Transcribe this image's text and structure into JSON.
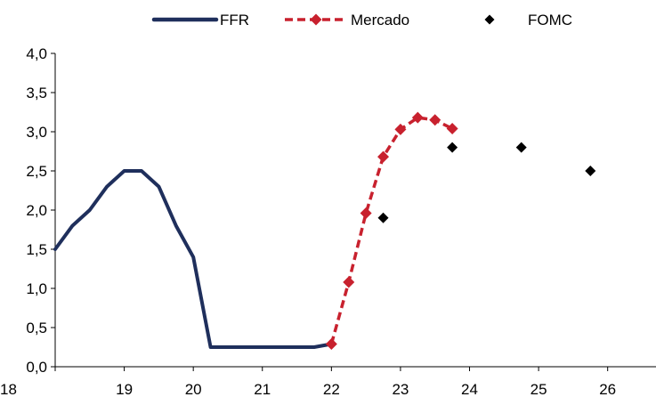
{
  "chart_data": {
    "type": "line",
    "title": "",
    "xlabel": "",
    "ylabel": "",
    "xlim": [
      18,
      26.7
    ],
    "ylim": [
      0,
      4.0
    ],
    "x_ticks": [
      18,
      19,
      20,
      21,
      22,
      23,
      24,
      25,
      26
    ],
    "x_tick_labels": [
      "18",
      "19",
      "20",
      "21",
      "22",
      "23",
      "24",
      "25",
      "26"
    ],
    "y_ticks": [
      0,
      0.5,
      1.0,
      1.5,
      2.0,
      2.5,
      3.0,
      3.5,
      4.0
    ],
    "y_tick_labels": [
      "0,0",
      "0,5",
      "1,0",
      "1,5",
      "2,0",
      "2,5",
      "3,0",
      "3,5",
      "4,0"
    ],
    "grid": false,
    "legend_position": "top",
    "series": [
      {
        "name": "FFR",
        "kind": "line",
        "color": "#1f2f5c",
        "x": [
          18.0,
          18.25,
          18.5,
          18.75,
          19.0,
          19.25,
          19.5,
          19.75,
          20.0,
          20.25,
          20.5,
          20.75,
          21.0,
          21.25,
          21.5,
          21.75,
          22.0
        ],
        "y": [
          1.5,
          1.8,
          2.0,
          2.3,
          2.5,
          2.5,
          2.3,
          1.8,
          1.4,
          0.25,
          0.25,
          0.25,
          0.25,
          0.25,
          0.25,
          0.25,
          0.29
        ]
      },
      {
        "name": "Mercado",
        "kind": "dashed-line-markers",
        "color": "#c8212e",
        "x": [
          22.0,
          22.25,
          22.5,
          22.75,
          23.0,
          23.25,
          23.5,
          23.75
        ],
        "y": [
          0.29,
          1.08,
          1.96,
          2.68,
          3.03,
          3.18,
          3.15,
          3.04
        ]
      },
      {
        "name": "FOMC",
        "kind": "markers",
        "color": "#000000",
        "x": [
          22.75,
          23.75,
          24.75,
          25.75
        ],
        "y": [
          1.9,
          2.8,
          2.8,
          2.5
        ]
      }
    ]
  }
}
